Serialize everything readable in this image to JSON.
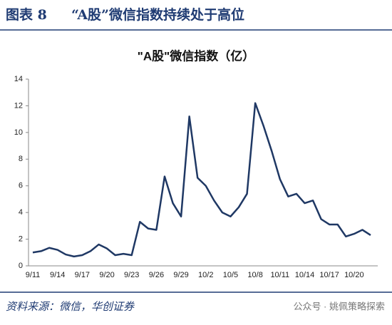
{
  "header": {
    "label": "图表 8",
    "title": "“A股”微信指数持续处于高位"
  },
  "chart_data": {
    "type": "line",
    "title": "\"A股\"微信指数（亿）",
    "categories": [
      "9/11",
      null,
      null,
      "9/14",
      null,
      null,
      "9/17",
      null,
      null,
      "9/20",
      null,
      null,
      "9/23",
      null,
      null,
      "9/26",
      null,
      null,
      "9/29",
      null,
      null,
      "10/2",
      null,
      null,
      "10/5",
      null,
      null,
      "10/8",
      null,
      null,
      "10/11",
      null,
      null,
      "10/14",
      null,
      null,
      "10/17",
      null,
      null,
      "10/20",
      null,
      null
    ],
    "series": [
      {
        "name": "A股微信指数",
        "color": "#1f3864",
        "values": [
          1.0,
          1.1,
          1.35,
          1.2,
          0.85,
          0.7,
          0.8,
          1.1,
          1.6,
          1.3,
          0.8,
          0.9,
          0.8,
          3.3,
          2.8,
          2.7,
          6.7,
          4.7,
          3.7,
          11.2,
          6.6,
          6.0,
          4.9,
          4.0,
          3.7,
          4.4,
          5.4,
          12.2,
          10.5,
          8.6,
          6.5,
          5.2,
          5.4,
          4.7,
          4.9,
          3.5,
          3.1,
          3.1,
          2.2,
          2.4,
          2.7,
          2.3
        ]
      }
    ],
    "ylim": [
      0,
      14
    ],
    "yticks": [
      0,
      2,
      4,
      6,
      8,
      10,
      12,
      14
    ],
    "grid": false
  },
  "footer": {
    "source": "资料来源：微信，华创证券",
    "watermark": "公众号 · 姚佩策略探索"
  }
}
